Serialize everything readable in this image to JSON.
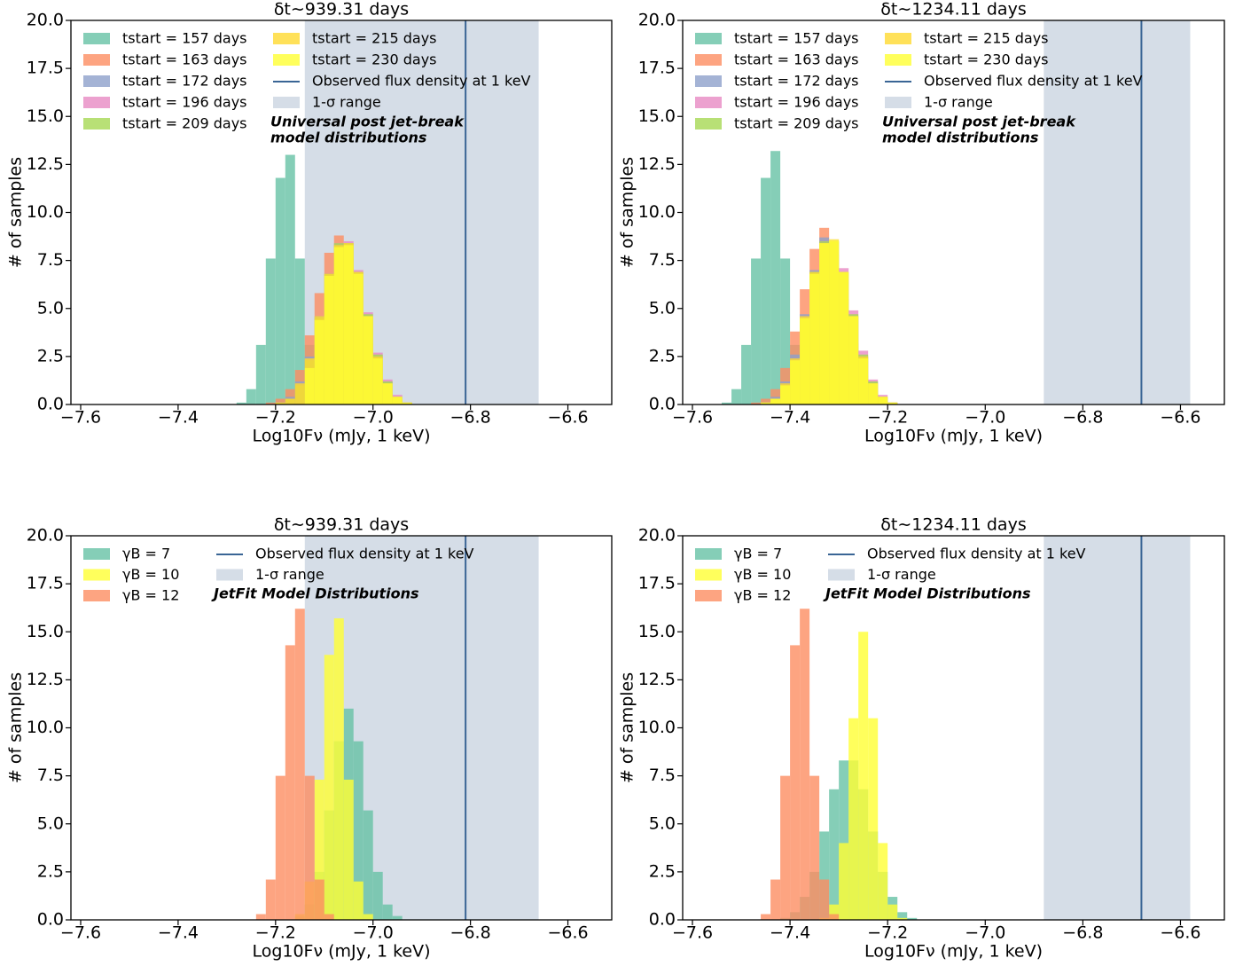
{
  "chart_data": [
    {
      "type": "histogram",
      "title": "δt∼939.31 days",
      "xlabel": "Log10Fν (mJy, 1 keV)",
      "ylabel": "# of samples",
      "xlim": [
        -7.62,
        -6.51
      ],
      "ylim": [
        0,
        20
      ],
      "alpha": 0.8,
      "xticks": [
        {
          "value": -7.6,
          "label": "−7.6"
        },
        {
          "value": -7.4,
          "label": "−7.4"
        },
        {
          "value": -7.2,
          "label": "−7.2"
        },
        {
          "value": -7.0,
          "label": "−7.0"
        },
        {
          "value": -6.8,
          "label": "−6.8"
        },
        {
          "value": -6.6,
          "label": "−6.6"
        }
      ],
      "yticks": [
        {
          "value": 0,
          "label": "0.0"
        },
        {
          "value": 2.5,
          "label": "2.5"
        },
        {
          "value": 5,
          "label": "5.0"
        },
        {
          "value": 7.5,
          "label": "7.5"
        },
        {
          "value": 10,
          "label": "10.0"
        },
        {
          "value": 12.5,
          "label": "12.5"
        },
        {
          "value": 15,
          "label": "15.0"
        },
        {
          "value": 17.5,
          "label": "17.5"
        },
        {
          "value": 20,
          "label": "20.0"
        }
      ],
      "bins": [
        -7.34,
        -7.32,
        -7.3,
        -7.28,
        -7.26,
        -7.24,
        -7.22,
        -7.2,
        -7.18,
        -7.16,
        -7.14,
        -7.12,
        -7.1,
        -7.08,
        -7.06,
        -7.04,
        -7.02,
        -7.0,
        -6.98,
        -6.96,
        -6.94,
        -6.92,
        -6.9,
        -6.88,
        -6.86
      ],
      "series": [
        {
          "name": "tstart = 157 days",
          "color": "#66c2a5",
          "values": [
            0,
            0,
            0,
            0.1,
            0.8,
            3.1,
            7.6,
            11.8,
            13,
            7.6,
            3.1,
            0.8,
            0.1,
            0,
            0,
            0,
            0,
            0,
            0,
            0,
            0,
            0,
            0,
            0
          ]
        },
        {
          "name": "tstart = 163 days",
          "color": "#fc8d62",
          "values": [
            0,
            0,
            0,
            0,
            0,
            0,
            0.1,
            0.3,
            0.8,
            1.8,
            3.6,
            5.8,
            7.9,
            8.8,
            7.6,
            5.4,
            3.2,
            1.5,
            0.6,
            0.2,
            0.1,
            0,
            0,
            0
          ]
        },
        {
          "name": "tstart = 172 days",
          "color": "#8da0cb",
          "values": [
            0,
            0,
            0,
            0,
            0,
            0,
            0,
            0.1,
            0.4,
            1.2,
            2.5,
            4.6,
            6.8,
            8.3,
            8.3,
            6.8,
            4.6,
            2.5,
            1.2,
            0.4,
            0.1,
            0,
            0,
            0
          ]
        },
        {
          "name": "tstart = 196 days",
          "color": "#e78ac3",
          "values": [
            0,
            0,
            0,
            0,
            0,
            0,
            0,
            0.1,
            0.3,
            1.0,
            2.3,
            4.4,
            6.7,
            8.4,
            8.5,
            7.0,
            4.8,
            2.7,
            1.3,
            0.5,
            0.1,
            0,
            0,
            0
          ]
        },
        {
          "name": "tstart = 209 days",
          "color": "#a6d854",
          "values": [
            0,
            0,
            0,
            0,
            0,
            0,
            0,
            0.1,
            0.3,
            1.0,
            2.3,
            4.5,
            6.8,
            8.4,
            8.4,
            6.9,
            4.7,
            2.6,
            1.2,
            0.4,
            0.1,
            0,
            0,
            0
          ]
        },
        {
          "name": "tstart = 215 days",
          "color": "#ffd92f",
          "values": [
            0,
            0,
            0,
            0,
            0,
            0,
            0,
            0.1,
            0.3,
            1.1,
            2.4,
            4.6,
            6.8,
            8.3,
            8.4,
            6.9,
            4.6,
            2.5,
            1.1,
            0.4,
            0.1,
            0,
            0,
            0
          ]
        },
        {
          "name": "tstart = 230 days",
          "color": "#ffff33",
          "values": [
            0,
            0,
            0,
            0,
            0,
            0,
            0,
            0,
            0,
            0,
            1.9,
            4.4,
            6.7,
            8.2,
            8.3,
            6.8,
            4.6,
            2.4,
            1.1,
            0.4,
            0.1,
            0,
            0,
            0
          ]
        }
      ],
      "reference_line": {
        "name": "Observed flux density at 1 keV",
        "value": -6.81,
        "color": "#3a6595"
      },
      "range": {
        "name": "1-σ range",
        "values": [
          -7.14,
          -6.66
        ],
        "color": "#d5dde7"
      },
      "annotation": [
        "Universal post jet-break",
        "model distributions"
      ]
    },
    {
      "type": "histogram",
      "title": "δt∼1234.11 days",
      "xlabel": "Log10Fν (mJy, 1 keV)",
      "ylabel": "# of samples",
      "xlim": [
        -7.62,
        -6.51
      ],
      "ylim": [
        0,
        20
      ],
      "alpha": 0.8,
      "xticks": [
        {
          "value": -7.6,
          "label": "−7.6"
        },
        {
          "value": -7.4,
          "label": "−7.4"
        },
        {
          "value": -7.2,
          "label": "−7.2"
        },
        {
          "value": -7.0,
          "label": "−7.0"
        },
        {
          "value": -6.8,
          "label": "−6.8"
        },
        {
          "value": -6.6,
          "label": "−6.6"
        }
      ],
      "yticks": [
        {
          "value": 0,
          "label": "0.0"
        },
        {
          "value": 2.5,
          "label": "2.5"
        },
        {
          "value": 5,
          "label": "5.0"
        },
        {
          "value": 7.5,
          "label": "7.5"
        },
        {
          "value": 10,
          "label": "10.0"
        },
        {
          "value": 12.5,
          "label": "12.5"
        },
        {
          "value": 15,
          "label": "15.0"
        },
        {
          "value": 17.5,
          "label": "17.5"
        },
        {
          "value": 20,
          "label": "20.0"
        }
      ],
      "bins": [
        -7.6,
        -7.58,
        -7.56,
        -7.54,
        -7.52,
        -7.5,
        -7.48,
        -7.46,
        -7.44,
        -7.42,
        -7.4,
        -7.38,
        -7.36,
        -7.34,
        -7.32,
        -7.3,
        -7.28,
        -7.26,
        -7.24,
        -7.22,
        -7.2,
        -7.18,
        -7.16,
        -7.14,
        -7.12
      ],
      "series": [
        {
          "name": "tstart = 157 days",
          "color": "#66c2a5",
          "values": [
            0,
            0,
            0,
            0.1,
            0.8,
            3.1,
            7.6,
            11.8,
            13.2,
            7.6,
            3.1,
            0.8,
            0.1,
            0,
            0,
            0,
            0,
            0,
            0,
            0,
            0,
            0,
            0,
            0
          ]
        },
        {
          "name": "tstart = 163 days",
          "color": "#fc8d62",
          "values": [
            0,
            0,
            0,
            0,
            0,
            0,
            0.1,
            0.3,
            0.8,
            1.9,
            3.8,
            6.0,
            8.1,
            9.2,
            7.8,
            5.5,
            3.2,
            1.5,
            0.6,
            0.2,
            0.1,
            0,
            0,
            0
          ]
        },
        {
          "name": "tstart = 172 days",
          "color": "#8da0cb",
          "values": [
            0,
            0,
            0,
            0,
            0,
            0,
            0,
            0.1,
            0.4,
            1.2,
            2.6,
            4.7,
            7.0,
            8.7,
            8.5,
            6.9,
            4.6,
            2.5,
            1.2,
            0.4,
            0.1,
            0,
            0,
            0
          ]
        },
        {
          "name": "tstart = 196 days",
          "color": "#e78ac3",
          "values": [
            0,
            0,
            0,
            0,
            0,
            0,
            0,
            0.1,
            0.3,
            1.0,
            2.3,
            4.4,
            6.8,
            8.5,
            8.6,
            7.1,
            4.9,
            2.8,
            1.3,
            0.5,
            0.1,
            0,
            0,
            0
          ]
        },
        {
          "name": "tstart = 209 days",
          "color": "#a6d854",
          "values": [
            0,
            0,
            0,
            0,
            0,
            0,
            0,
            0.1,
            0.3,
            1.0,
            2.3,
            4.5,
            6.9,
            8.5,
            8.5,
            6.9,
            4.7,
            2.6,
            1.2,
            0.4,
            0.1,
            0,
            0,
            0
          ]
        },
        {
          "name": "tstart = 215 days",
          "color": "#ffd92f",
          "values": [
            0,
            0,
            0,
            0,
            0,
            0,
            0,
            0.1,
            0.3,
            1.1,
            2.4,
            4.6,
            6.9,
            8.4,
            8.5,
            6.9,
            4.6,
            2.5,
            1.1,
            0.4,
            0.1,
            0,
            0,
            0
          ]
        },
        {
          "name": "tstart = 230 days",
          "color": "#ffff33",
          "values": [
            0,
            0,
            0,
            0,
            0,
            0,
            0,
            0.1,
            0.3,
            1.0,
            2.3,
            4.5,
            6.8,
            8.4,
            8.6,
            6.9,
            4.6,
            2.4,
            1.1,
            0.4,
            0.1,
            0,
            0,
            0
          ]
        }
      ],
      "reference_line": {
        "name": "Observed flux density at 1 keV",
        "value": -6.68,
        "color": "#3a6595"
      },
      "range": {
        "name": "1-σ range",
        "values": [
          -6.88,
          -6.58
        ],
        "color": "#d5dde7"
      },
      "annotation": [
        "Universal post jet-break",
        "model distributions"
      ]
    },
    {
      "type": "histogram",
      "title": "δt∼939.31 days",
      "xlabel": "Log10Fν (mJy, 1 keV)",
      "ylabel": "# of samples",
      "xlim": [
        -7.62,
        -6.51
      ],
      "ylim": [
        0,
        20
      ],
      "alpha": 0.8,
      "xticks": [
        {
          "value": -7.6,
          "label": "−7.6"
        },
        {
          "value": -7.4,
          "label": "−7.4"
        },
        {
          "value": -7.2,
          "label": "−7.2"
        },
        {
          "value": -7.0,
          "label": "−7.0"
        },
        {
          "value": -6.8,
          "label": "−6.8"
        },
        {
          "value": -6.6,
          "label": "−6.6"
        }
      ],
      "yticks": [
        {
          "value": 0,
          "label": "0.0"
        },
        {
          "value": 2.5,
          "label": "2.5"
        },
        {
          "value": 5,
          "label": "5.0"
        },
        {
          "value": 7.5,
          "label": "7.5"
        },
        {
          "value": 10,
          "label": "10.0"
        },
        {
          "value": 12.5,
          "label": "12.5"
        },
        {
          "value": 15,
          "label": "15.0"
        },
        {
          "value": 17.5,
          "label": "17.5"
        },
        {
          "value": 20,
          "label": "20.0"
        }
      ],
      "bins": [
        -7.3,
        -7.28,
        -7.26,
        -7.24,
        -7.22,
        -7.2,
        -7.18,
        -7.16,
        -7.14,
        -7.12,
        -7.1,
        -7.08,
        -7.06,
        -7.04,
        -7.02,
        -7.0,
        -6.98,
        -6.96,
        -6.94
      ],
      "series": [
        {
          "name": "γB = 7",
          "color": "#66c2a5",
          "values": [
            0,
            0,
            0,
            0,
            0,
            0,
            0,
            0.2,
            0.8,
            2.5,
            5.7,
            9.3,
            11,
            9.3,
            5.7,
            2.5,
            0.8,
            0.2
          ]
        },
        {
          "name": "γB = 10",
          "color": "#ffff33",
          "values": [
            0,
            0,
            0,
            0,
            0,
            0,
            0,
            0.3,
            2.0,
            7.3,
            13.8,
            15.7,
            7.3,
            2.0,
            0.3,
            0,
            0,
            0
          ]
        },
        {
          "name": "γB = 12",
          "color": "#fc8d62",
          "values": [
            0,
            0,
            0,
            0.3,
            2.1,
            7.5,
            14.3,
            16.2,
            7.5,
            2.1,
            0.3,
            0,
            0,
            0,
            0,
            0,
            0,
            0
          ]
        }
      ],
      "reference_line": {
        "name": "Observed flux density at 1 keV",
        "value": -6.81,
        "color": "#3a6595"
      },
      "range": {
        "name": "1-σ range",
        "values": [
          -7.14,
          -6.66
        ],
        "color": "#d5dde7"
      },
      "annotation": [
        "JetFit Model Distributions"
      ]
    },
    {
      "type": "histogram",
      "title": "δt∼1234.11 days",
      "xlabel": "Log10Fν (mJy, 1 keV)",
      "ylabel": "# of samples",
      "xlim": [
        -7.62,
        -6.51
      ],
      "ylim": [
        0,
        20
      ],
      "alpha": 0.8,
      "xticks": [
        {
          "value": -7.6,
          "label": "−7.6"
        },
        {
          "value": -7.4,
          "label": "−7.4"
        },
        {
          "value": -7.2,
          "label": "−7.2"
        },
        {
          "value": -7.0,
          "label": "−7.0"
        },
        {
          "value": -6.8,
          "label": "−6.8"
        },
        {
          "value": -6.6,
          "label": "−6.6"
        }
      ],
      "yticks": [
        {
          "value": 0,
          "label": "0.0"
        },
        {
          "value": 2.5,
          "label": "2.5"
        },
        {
          "value": 5,
          "label": "5.0"
        },
        {
          "value": 7.5,
          "label": "7.5"
        },
        {
          "value": 10,
          "label": "10.0"
        },
        {
          "value": 12.5,
          "label": "12.5"
        },
        {
          "value": 15,
          "label": "15.0"
        },
        {
          "value": 17.5,
          "label": "17.5"
        },
        {
          "value": 20,
          "label": "20.0"
        }
      ],
      "bins": [
        -7.5,
        -7.48,
        -7.46,
        -7.44,
        -7.42,
        -7.4,
        -7.38,
        -7.36,
        -7.34,
        -7.32,
        -7.3,
        -7.28,
        -7.26,
        -7.24,
        -7.22,
        -7.2,
        -7.18,
        -7.16,
        -7.14,
        -7.12,
        -7.1
      ],
      "series": [
        {
          "name": "γB = 7",
          "color": "#66c2a5",
          "values": [
            0,
            0,
            0,
            0,
            0.1,
            0.4,
            1.2,
            2.5,
            4.6,
            6.8,
            8.3,
            8.3,
            6.8,
            4.6,
            2.5,
            1.2,
            0.4,
            0.1,
            0,
            0
          ]
        },
        {
          "name": "γB = 10",
          "color": "#ffff33",
          "values": [
            0,
            0,
            0,
            0,
            0,
            0,
            0,
            0,
            0.1,
            0.8,
            4.0,
            10.5,
            15.0,
            10.5,
            4.0,
            0.8,
            0.1,
            0,
            0,
            0
          ]
        },
        {
          "name": "γB = 12",
          "color": "#fc8d62",
          "values": [
            0,
            0,
            0.3,
            2.1,
            7.5,
            14.3,
            16.2,
            7.5,
            2.1,
            0.3,
            0,
            0,
            0,
            0,
            0,
            0,
            0,
            0,
            0,
            0
          ]
        }
      ],
      "reference_line": {
        "name": "Observed flux density at 1 keV",
        "value": -6.68,
        "color": "#3a6595"
      },
      "range": {
        "name": "1-σ range",
        "values": [
          -6.88,
          -6.58
        ],
        "color": "#d5dde7"
      },
      "annotation": [
        "JetFit Model Distributions"
      ]
    }
  ]
}
